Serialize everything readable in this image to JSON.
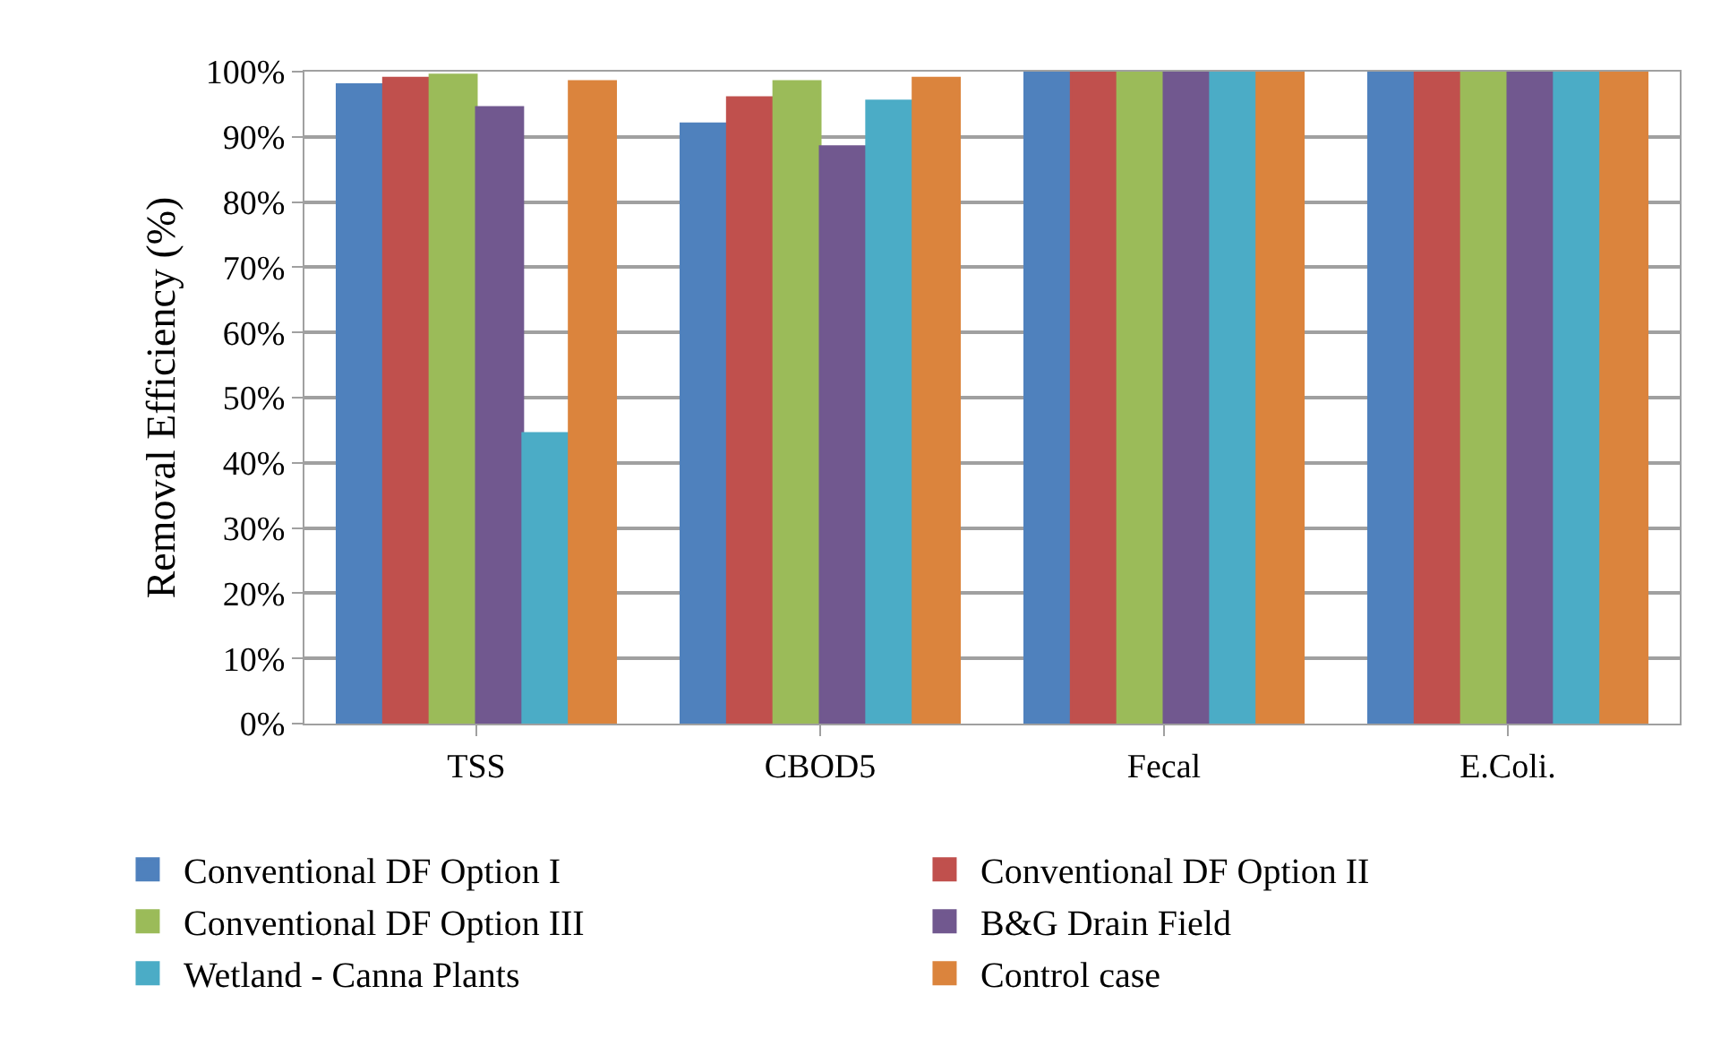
{
  "chart_data": {
    "type": "bar",
    "ylabel": "Removal Efficiency (%)",
    "categories": [
      "TSS",
      "CBOD5",
      "Fecal",
      "E.Coli."
    ],
    "series": [
      {
        "name": "Conventional DF Option I",
        "color": "#4f81bd",
        "values": [
          98,
          92,
          100,
          100
        ]
      },
      {
        "name": "Conventional DF Option II",
        "color": "#c0504d",
        "values": [
          99,
          96,
          100,
          100
        ]
      },
      {
        "name": "Conventional DF Option III",
        "color": "#9bbb59",
        "values": [
          99.5,
          98.5,
          100,
          100
        ]
      },
      {
        "name": "B&G Drain Field",
        "color": "#71588f",
        "values": [
          94.5,
          88.5,
          100,
          100
        ]
      },
      {
        "name": "Wetland - Canna Plants",
        "color": "#4bacc6",
        "values": [
          44.5,
          95.5,
          100,
          100
        ]
      },
      {
        "name": "Control case",
        "color": "#db843d",
        "values": [
          98.5,
          99,
          100,
          100
        ]
      }
    ],
    "ylim": [
      0,
      100
    ],
    "yticks": [
      {
        "value": 0,
        "label": "0%"
      },
      {
        "value": 10,
        "label": "10%"
      },
      {
        "value": 20,
        "label": "20%"
      },
      {
        "value": 30,
        "label": "30%"
      },
      {
        "value": 40,
        "label": "40%"
      },
      {
        "value": 50,
        "label": "50%"
      },
      {
        "value": 60,
        "label": "60%"
      },
      {
        "value": 70,
        "label": "70%"
      },
      {
        "value": 80,
        "label": "80%"
      },
      {
        "value": 90,
        "label": "90%"
      },
      {
        "value": 100,
        "label": "100%"
      }
    ],
    "grid": "y",
    "legend": "bottom"
  }
}
